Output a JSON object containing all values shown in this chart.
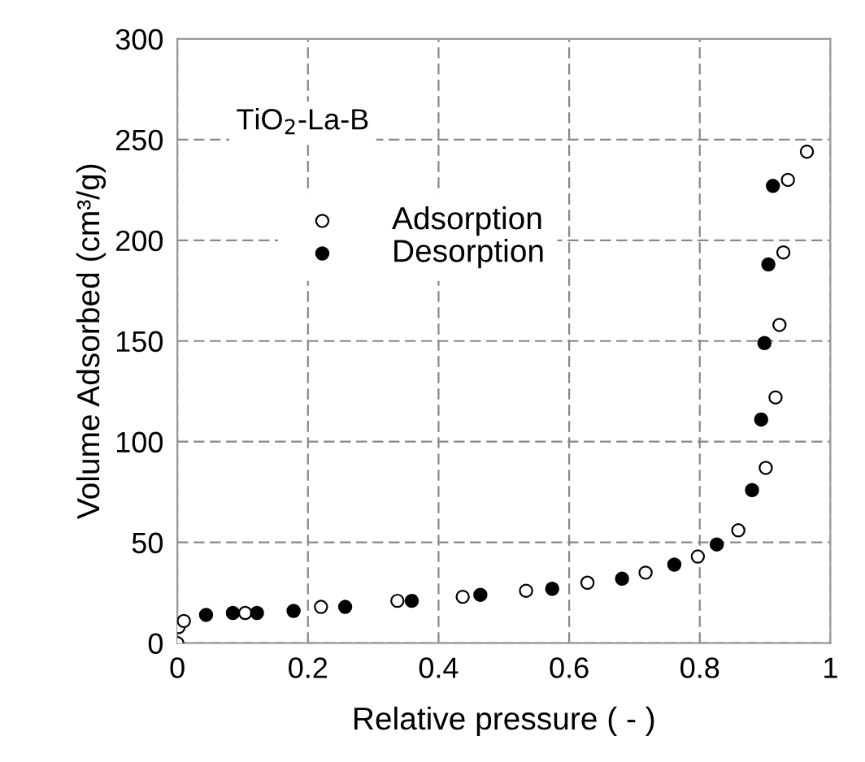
{
  "chart_data": {
    "type": "scatter",
    "xlabel": "Relative pressure ( - )",
    "ylabel": "Volume Adsorbed (cm³/g)",
    "annotations": [
      "TiO$_{2}$-La-B"
    ],
    "xlim": [
      0,
      1
    ],
    "ylim": [
      0,
      300
    ],
    "xticks": [
      0,
      0.2,
      0.4,
      0.6,
      0.8,
      1
    ],
    "yticks": [
      0,
      50,
      100,
      150,
      200,
      250,
      300
    ],
    "grid": true,
    "legend": "top left",
    "series": [
      {
        "name": "Adsorption",
        "color": "#ffffff",
        "marker": "circle",
        "x": [
          0,
          0.002,
          0.01,
          0.104,
          0.22,
          0.337,
          0.437,
          0.534,
          0.628,
          0.717,
          0.797,
          0.859,
          0.901,
          0.916,
          0.922,
          0.928,
          0.935,
          0.964
        ],
        "values": [
          0,
          8,
          11,
          15,
          18,
          21,
          23,
          26,
          30,
          35,
          43,
          56,
          87,
          122,
          158,
          194,
          230,
          244
        ]
      },
      {
        "name": "Desorption",
        "color": "#000000",
        "marker": "circle",
        "x": [
          0.044,
          0.085,
          0.122,
          0.178,
          0.257,
          0.359,
          0.464,
          0.574,
          0.681,
          0.761,
          0.826,
          0.88,
          0.894,
          0.899,
          0.905,
          0.912
        ],
        "values": [
          14,
          15,
          15,
          16,
          18,
          21,
          24,
          27,
          32,
          39,
          49,
          76,
          111,
          149,
          188,
          227
        ]
      }
    ]
  }
}
